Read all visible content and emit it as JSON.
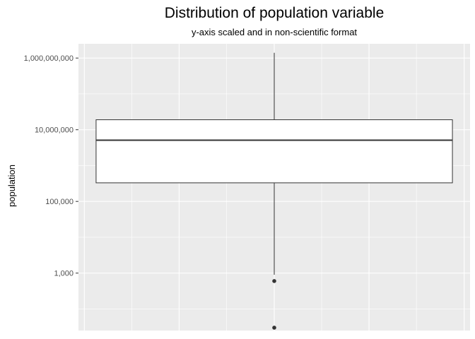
{
  "chart_data": {
    "type": "box",
    "title": "Distribution of population variable",
    "subtitle": "y-axis scaled and in non-scientific format",
    "xlabel": "",
    "ylabel": "population",
    "y_scale": "log10",
    "ylim": [
      25,
      2500000000
    ],
    "y_ticks": [
      1000,
      100000,
      10000000,
      1000000000
    ],
    "y_tick_labels": [
      "1,000",
      "100,000",
      "10,000,000",
      "1,000,000,000"
    ],
    "grid": true,
    "legend": "none",
    "box": {
      "lower_whisker": 900,
      "q1": 330000,
      "median": 5100000,
      "q3": 19000000,
      "upper_whisker": 1400000000
    },
    "outliers": [
      600,
      30
    ],
    "colors": {
      "panel_bg": "#EBEBEB",
      "grid": "#FFFFFF",
      "box_fill": "#FFFFFF",
      "box_line": "#333333",
      "point": "#333333",
      "text": "#4D4D4D"
    }
  }
}
